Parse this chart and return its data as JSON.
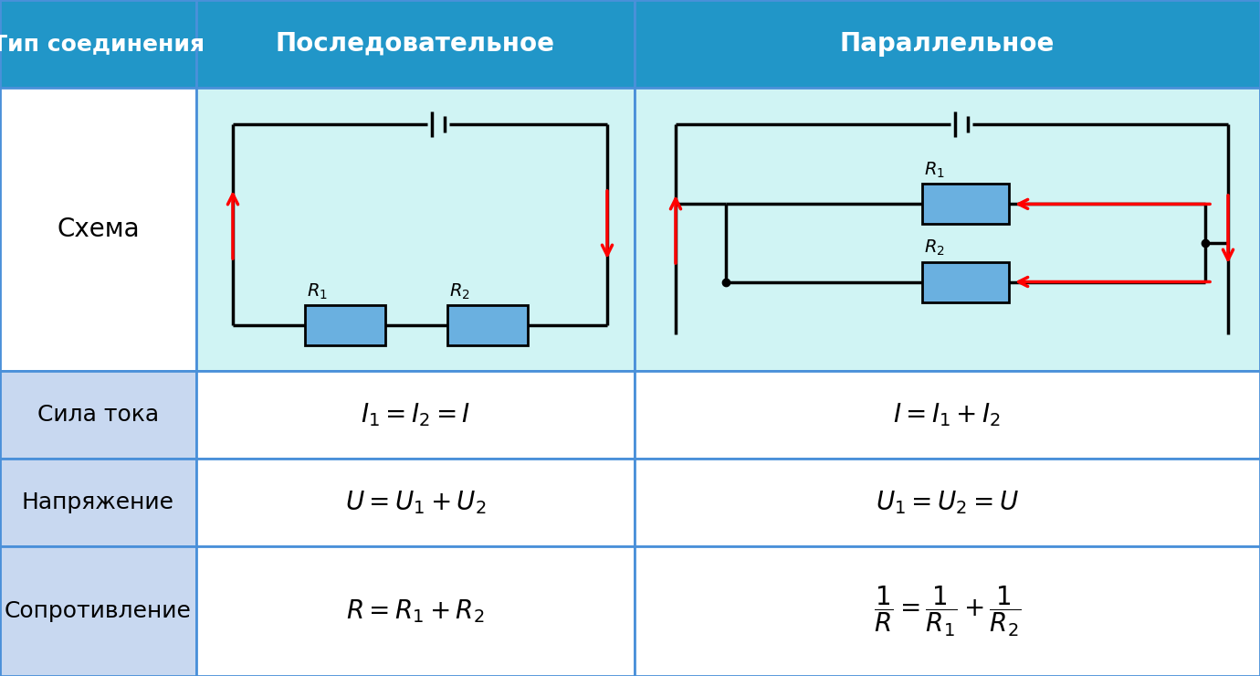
{
  "header_bg": "#2196c8",
  "header_text": "#ffffff",
  "schema_bg": "#d0f4f4",
  "col1_schema_bg": "#ffffff",
  "data_row_bg": "#c8d8f0",
  "data_cell_bg": "#ffffff",
  "grid_color": "#4a90d9",
  "text_dark": "#000000",
  "resistor_fill": "#6ab0e0",
  "resistor_edge": "#000000",
  "arrow_color": "#ff0000",
  "col1_label": "Тип соединения",
  "col2_label": "Последовательное",
  "col3_label": "Параллельное",
  "row1_label": "Схема",
  "row2_label": "Сила тока",
  "row3_label": "Напряжение",
  "row4_label": "Сопротивление",
  "figw": 13.8,
  "figh": 7.4,
  "dpi": 100
}
